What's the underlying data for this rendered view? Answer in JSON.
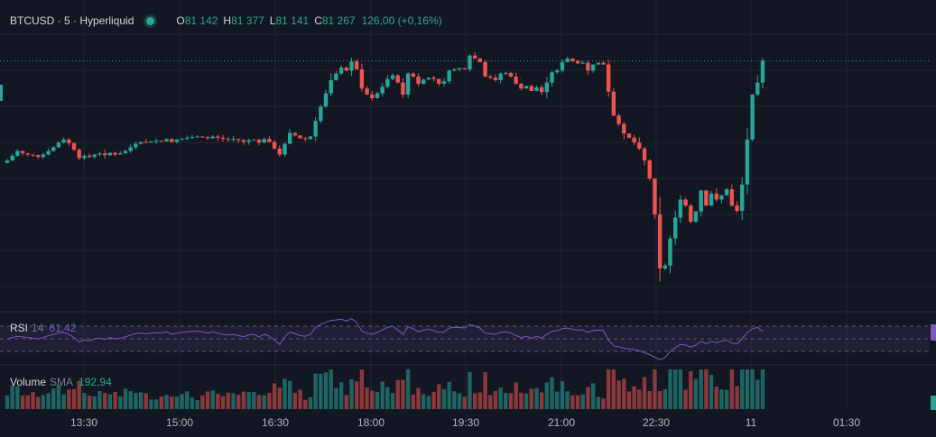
{
  "header": {
    "symbol": "BTCUSD · 5 · Hyperliquid",
    "o_label": "O",
    "o_value": "81 142",
    "h_label": "H",
    "h_value": "81 377",
    "l_label": "L",
    "l_value": "81 141",
    "c_label": "C",
    "c_value": "81 267",
    "change": "126,00 (+0,16%)"
  },
  "indicators": {
    "rsi": {
      "name": "RSI",
      "param": "14",
      "value": "61,42"
    },
    "volume": {
      "name": "Volume",
      "param": "SMA",
      "value": "192,94"
    }
  },
  "time_axis": [
    "13:30",
    "15:00",
    "16:30",
    "18:00",
    "19:30",
    "21:00",
    "22:30",
    "11",
    "01:30"
  ],
  "colors": {
    "background": "#131722",
    "up": "#26a69a",
    "down": "#ef5350",
    "rsi_line": "#7e57c2",
    "grid": "#1f2430"
  },
  "chart_data": {
    "type": "candlestick",
    "symbol": "BTCUSD",
    "interval": "5",
    "exchange": "Hyperliquid",
    "last_close": 81267,
    "closes": [
      79600,
      79680,
      79760,
      79720,
      79700,
      79690,
      79660,
      79700,
      79760,
      79820,
      79900,
      79950,
      79890,
      79780,
      79640,
      79680,
      79660,
      79700,
      79720,
      79690,
      79730,
      79700,
      79720,
      79760,
      79820,
      79880,
      79910,
      79900,
      79920,
      79930,
      79920,
      79960,
      79910,
      79950,
      79960,
      79980,
      79990,
      80000,
      79990,
      79970,
      80000,
      79980,
      79960,
      79950,
      79960,
      79940,
      79910,
      79940,
      79950,
      79900,
      79960,
      79910,
      79800,
      79700,
      79880,
      80060,
      80020,
      79970,
      79960,
      80000,
      80260,
      80500,
      80720,
      80940,
      81050,
      81150,
      81100,
      81250,
      81120,
      80800,
      80700,
      80640,
      80720,
      80830,
      80960,
      81020,
      80900,
      80700,
      81050,
      81000,
      80880,
      80950,
      80980,
      80960,
      80880,
      80920,
      81100,
      81120,
      81140,
      81120,
      81350,
      81300,
      81240,
      81000,
      80980,
      80940,
      81050,
      81060,
      81000,
      80880,
      80800,
      80840,
      80760,
      80820,
      80740,
      80900,
      81070,
      81100,
      81240,
      81300,
      81260,
      81220,
      81230,
      81100,
      81200,
      81230,
      81200,
      80750,
      80350,
      80210,
      80050,
      79980,
      79900,
      79800,
      79600,
      79300,
      78700,
      77800,
      77850,
      78300,
      78650,
      78950,
      78850,
      78580,
      78750,
      79100,
      78850,
      79050,
      78950,
      79020,
      79120,
      78850,
      78760,
      79200,
      79950,
      80700,
      80900,
      81267
    ],
    "rsi_values": [
      50,
      52,
      54,
      53,
      52,
      51,
      50,
      52,
      55,
      57,
      59,
      60,
      57,
      52,
      45,
      48,
      47,
      50,
      51,
      49,
      52,
      50,
      51,
      53,
      56,
      58,
      59,
      58,
      59,
      60,
      59,
      61,
      57,
      59,
      60,
      61,
      62,
      62,
      61,
      59,
      61,
      59,
      57,
      56,
      57,
      55,
      53,
      56,
      57,
      53,
      57,
      54,
      48,
      41,
      53,
      61,
      58,
      55,
      54,
      57,
      68,
      73,
      76,
      79,
      80,
      81,
      78,
      82,
      76,
      62,
      59,
      57,
      60,
      64,
      68,
      70,
      64,
      57,
      69,
      66,
      61,
      64,
      65,
      63,
      60,
      61,
      67,
      68,
      68,
      67,
      73,
      70,
      67,
      59,
      58,
      57,
      60,
      61,
      59,
      55,
      52,
      54,
      51,
      54,
      51,
      57,
      62,
      63,
      66,
      67,
      65,
      64,
      64,
      60,
      63,
      64,
      63,
      48,
      39,
      37,
      35,
      34,
      33,
      31,
      28,
      25,
      21,
      17,
      20,
      30,
      36,
      41,
      40,
      37,
      40,
      46,
      42,
      46,
      44,
      46,
      48,
      43,
      42,
      50,
      60,
      66,
      68,
      61.42
    ]
  }
}
